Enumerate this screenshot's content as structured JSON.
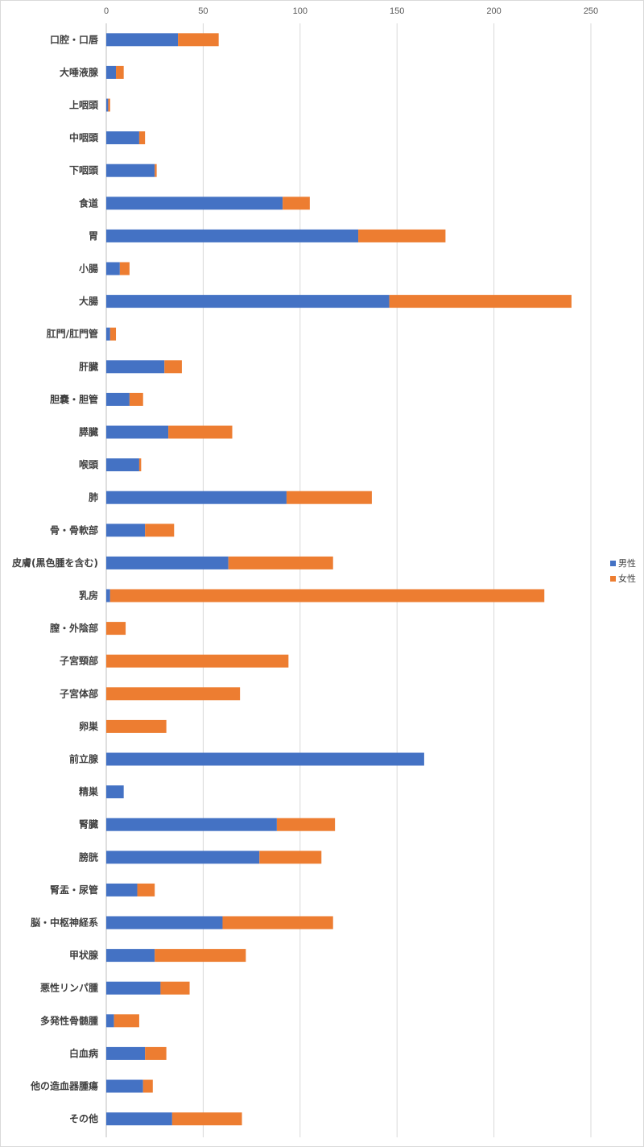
{
  "chart_data": {
    "type": "bar",
    "orientation": "horizontal",
    "stacked": true,
    "x_axis_position": "top",
    "xlim": [
      0,
      250
    ],
    "x_ticks": [
      0,
      50,
      100,
      150,
      200,
      250
    ],
    "x_tick_labels": [
      "0",
      "50",
      "100",
      "150",
      "200",
      "250"
    ],
    "grid": true,
    "legend": "right",
    "categories": [
      "口腔・口唇",
      "大唾液腺",
      "上咽頭",
      "中咽頭",
      "下咽頭",
      "食道",
      "胃",
      "小腸",
      "大腸",
      "肛門/肛門管",
      "肝臓",
      "胆嚢・胆管",
      "膵臓",
      "喉頭",
      "肺",
      "骨・骨軟部",
      "皮膚(黒色腫を含む)",
      "乳房",
      "膣・外陰部",
      "子宮頸部",
      "子宮体部",
      "卵巣",
      "前立腺",
      "精巣",
      "腎臓",
      "膀胱",
      "腎盂・尿管",
      "脳・中枢神経系",
      "甲状腺",
      "悪性リンパ腫",
      "多発性骨髄腫",
      "白血病",
      "他の造血器腫瘍",
      "その他"
    ],
    "series": [
      {
        "name": "男性",
        "color": "#4472c4",
        "values": [
          37,
          5,
          1,
          17,
          25,
          91,
          130,
          7,
          146,
          2,
          30,
          12,
          32,
          17,
          93,
          20,
          63,
          2,
          0,
          0,
          0,
          0,
          164,
          9,
          88,
          79,
          16,
          60,
          25,
          28,
          4,
          20,
          19,
          34
        ]
      },
      {
        "name": "女性",
        "color": "#ed7d31",
        "values": [
          21,
          4,
          1,
          3,
          1,
          14,
          45,
          5,
          94,
          3,
          9,
          7,
          33,
          1,
          44,
          15,
          54,
          224,
          10,
          94,
          69,
          31,
          0,
          0,
          30,
          32,
          9,
          57,
          47,
          15,
          13,
          11,
          5,
          36
        ]
      }
    ]
  }
}
